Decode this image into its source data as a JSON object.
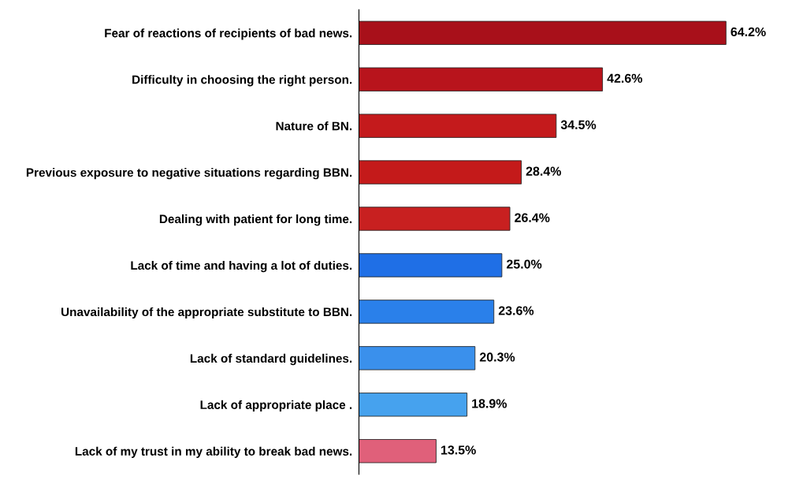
{
  "chart_data": {
    "type": "bar",
    "orientation": "horizontal",
    "data_labels": true,
    "grid": false,
    "legend": false,
    "tick_labels": "y",
    "categories": [
      "Fear of reactions of recipients of bad news.",
      "Difficulty in choosing the right person.",
      "Nature of BN.",
      "Previous exposure to negative situations regarding BBN.",
      "Dealing with patient for long time.",
      "Lack of time and having a lot of duties.",
      "Unavailability of the appropriate substitute to BBN.",
      "Lack of standard guidelines.",
      "Lack of appropriate place .",
      "Lack of my trust in my ability to break bad news."
    ],
    "values": [
      64.2,
      42.6,
      34.5,
      28.4,
      26.4,
      25.0,
      23.6,
      20.3,
      18.9,
      13.5
    ],
    "value_labels": [
      "64.2%",
      "42.6%",
      "34.5%",
      "28.4%",
      "26.4%",
      "25.0%",
      "23.6%",
      "20.3%",
      "18.9%",
      "13.5%"
    ],
    "colors": [
      "#a8101a",
      "#b8141c",
      "#c41a1c",
      "#c41a1a",
      "#c82020",
      "#1f6fe6",
      "#2a80ea",
      "#3a90ec",
      "#46a2ee",
      "#e0607a"
    ]
  }
}
